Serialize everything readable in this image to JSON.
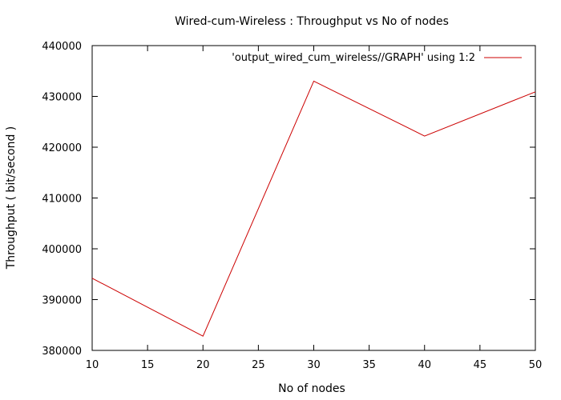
{
  "chart_data": {
    "type": "line",
    "title": "Wired-cum-Wireless : Throughput vs No of nodes",
    "xlabel": "No of nodes",
    "ylabel": "Throughput ( bit/second )",
    "xlim": [
      10,
      50
    ],
    "ylim": [
      380000,
      440000
    ],
    "xticks": [
      10,
      15,
      20,
      25,
      30,
      35,
      40,
      45,
      50
    ],
    "yticks": [
      380000,
      390000,
      400000,
      410000,
      420000,
      430000,
      440000
    ],
    "grid": false,
    "legend_position": "top-right",
    "series": [
      {
        "name": "'output_wired_cum_wireless//GRAPH' using 1:2",
        "color": "#cc0000",
        "x": [
          10,
          20,
          30,
          40,
          50
        ],
        "y": [
          394200,
          382800,
          433000,
          422200,
          430900
        ]
      }
    ]
  }
}
